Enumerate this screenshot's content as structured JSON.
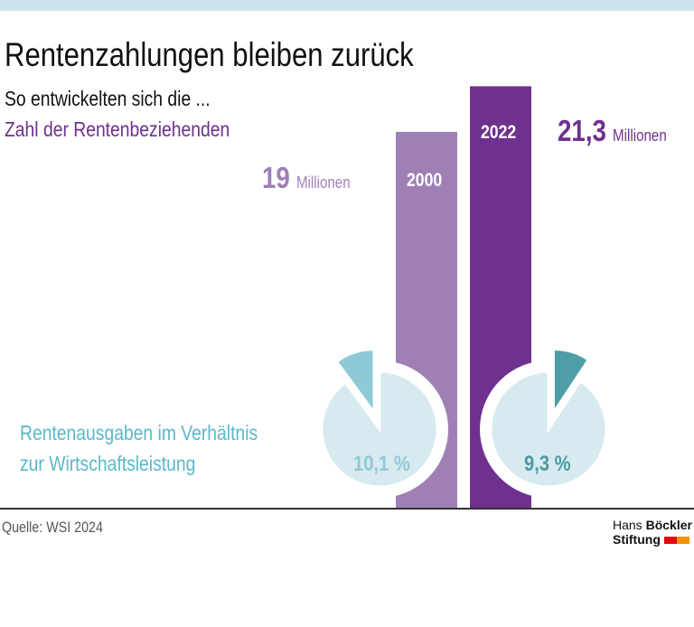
{
  "title": "Rentenzahlungen bleiben zurück",
  "subtitle": "So entwickelten sich die ...",
  "source": "Quelle: WSI 2024",
  "logo": {
    "line1_regular": "Hans",
    "line1_bold": "Böckler",
    "line2": "Stiftung",
    "colors": [
      "#e30613",
      "#f39200"
    ]
  },
  "chart_data": [
    {
      "type": "bar",
      "title": "Zahl der Rentenbeziehenden",
      "categories": [
        "2000",
        "2022"
      ],
      "values": [
        19,
        21.3
      ],
      "value_labels": [
        "19",
        "21,3"
      ],
      "unit": "Millionen",
      "colors": [
        "#9e80b5",
        "#6e318d"
      ]
    },
    {
      "type": "pie",
      "title": "Rentenausgaben im Verhältnis zur Wirtschaftsleistung",
      "title_lines": [
        "Rentenausgaben im Verhältnis",
        "zur Wirtschaftsleistung"
      ],
      "categories": [
        "2000",
        "2022"
      ],
      "values": [
        10.1,
        9.3
      ],
      "value_labels": [
        "10,1 %",
        "9,3 %"
      ],
      "colors": {
        "base": "#d6eaf0",
        "slice_2000": "#8ecad5",
        "slice_2022": "#4d9ea6",
        "label_2000": "#8ecad6",
        "label_2022": "#4a9aa3",
        "title": "#5bb8c8"
      }
    }
  ]
}
